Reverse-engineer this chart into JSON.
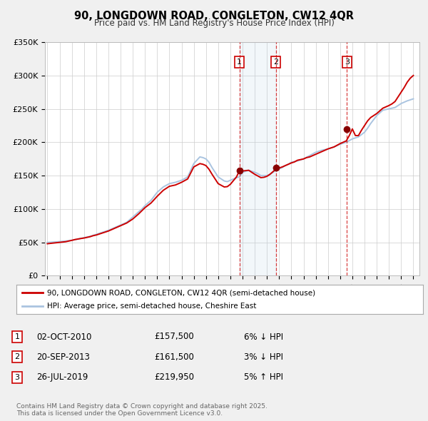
{
  "title": "90, LONGDOWN ROAD, CONGLETON, CW12 4QR",
  "subtitle": "Price paid vs. HM Land Registry's House Price Index (HPI)",
  "background_color": "#f0f0f0",
  "plot_bg_color": "#ffffff",
  "ylim": [
    0,
    350000
  ],
  "xlim_start": 1994.8,
  "xlim_end": 2025.5,
  "yticks": [
    0,
    50000,
    100000,
    150000,
    200000,
    250000,
    300000,
    350000
  ],
  "ytick_labels": [
    "£0",
    "£50K",
    "£100K",
    "£150K",
    "£200K",
    "£250K",
    "£300K",
    "£350K"
  ],
  "grid_color": "#cccccc",
  "hpi_line_color": "#aac4e0",
  "price_line_color": "#cc0000",
  "sale_dot_color": "#880000",
  "sale_points": [
    {
      "year": 2010.75,
      "value": 157500,
      "label": "1"
    },
    {
      "year": 2013.72,
      "value": 161500,
      "label": "2"
    },
    {
      "year": 2019.56,
      "value": 219950,
      "label": "3"
    }
  ],
  "legend_price_label": "90, LONGDOWN ROAD, CONGLETON, CW12 4QR (semi-detached house)",
  "legend_hpi_label": "HPI: Average price, semi-detached house, Cheshire East",
  "table_rows": [
    {
      "num": "1",
      "date": "02-OCT-2010",
      "price": "£157,500",
      "hpi": "6% ↓ HPI"
    },
    {
      "num": "2",
      "date": "20-SEP-2013",
      "price": "£161,500",
      "hpi": "3% ↓ HPI"
    },
    {
      "num": "3",
      "date": "26-JUL-2019",
      "price": "£219,950",
      "hpi": "5% ↑ HPI"
    }
  ],
  "footer_text": "Contains HM Land Registry data © Crown copyright and database right 2025.\nThis data is licensed under the Open Government Licence v3.0.",
  "hpi_data_x": [
    1995,
    1995.25,
    1995.5,
    1995.75,
    1996,
    1996.25,
    1996.5,
    1996.75,
    1997,
    1997.25,
    1997.5,
    1997.75,
    1998,
    1998.25,
    1998.5,
    1998.75,
    1999,
    1999.25,
    1999.5,
    1999.75,
    2000,
    2000.25,
    2000.5,
    2000.75,
    2001,
    2001.25,
    2001.5,
    2001.75,
    2002,
    2002.25,
    2002.5,
    2002.75,
    2003,
    2003.25,
    2003.5,
    2003.75,
    2004,
    2004.25,
    2004.5,
    2004.75,
    2005,
    2005.25,
    2005.5,
    2005.75,
    2006,
    2006.25,
    2006.5,
    2006.75,
    2007,
    2007.25,
    2007.5,
    2007.75,
    2008,
    2008.25,
    2008.5,
    2008.75,
    2009,
    2009.25,
    2009.5,
    2009.75,
    2010,
    2010.25,
    2010.5,
    2010.75,
    2011,
    2011.25,
    2011.5,
    2011.75,
    2012,
    2012.25,
    2012.5,
    2012.75,
    2013,
    2013.25,
    2013.5,
    2013.75,
    2014,
    2014.25,
    2014.5,
    2014.75,
    2015,
    2015.25,
    2015.5,
    2015.75,
    2016,
    2016.25,
    2016.5,
    2016.75,
    2017,
    2017.25,
    2017.5,
    2017.75,
    2018,
    2018.25,
    2018.5,
    2018.75,
    2019,
    2019.25,
    2019.5,
    2019.75,
    2020,
    2020.25,
    2020.5,
    2020.75,
    2021,
    2021.25,
    2021.5,
    2021.75,
    2022,
    2022.25,
    2022.5,
    2022.75,
    2023,
    2023.25,
    2023.5,
    2023.75,
    2024,
    2024.25,
    2024.5,
    2024.75,
    2025
  ],
  "hpi_data_y": [
    50000,
    50200,
    50500,
    50800,
    51200,
    51600,
    52000,
    52600,
    53200,
    54000,
    55000,
    56000,
    57000,
    58000,
    59000,
    60500,
    62000,
    63500,
    65000,
    66500,
    68000,
    70000,
    72000,
    74000,
    76000,
    78000,
    80000,
    84000,
    88000,
    92000,
    96000,
    100000,
    105000,
    109000,
    113000,
    119000,
    125000,
    129000,
    133000,
    135500,
    138000,
    139000,
    140000,
    141500,
    143000,
    145500,
    148000,
    158000,
    168000,
    173000,
    178000,
    177000,
    175000,
    170000,
    162000,
    155000,
    148000,
    145000,
    142000,
    141000,
    143000,
    145000,
    147000,
    148000,
    155000,
    156500,
    158000,
    156500,
    155000,
    153000,
    150000,
    150000,
    150000,
    152000,
    155000,
    158000,
    160000,
    162000,
    165000,
    167000,
    170000,
    171000,
    172000,
    173500,
    175000,
    177500,
    180000,
    182500,
    185000,
    186500,
    188000,
    189000,
    190000,
    191500,
    193000,
    195000,
    197000,
    198500,
    200000,
    202500,
    205000,
    206500,
    208000,
    211500,
    215000,
    221000,
    228000,
    234000,
    240000,
    244000,
    248000,
    249000,
    250000,
    251000,
    252000,
    255000,
    258000,
    260000,
    262000,
    263500,
    265000
  ],
  "price_data_x": [
    1995,
    1995.25,
    1995.5,
    1995.75,
    1996,
    1996.25,
    1996.5,
    1996.75,
    1997,
    1997.25,
    1997.5,
    1997.75,
    1998,
    1998.25,
    1998.5,
    1998.75,
    1999,
    1999.25,
    1999.5,
    1999.75,
    2000,
    2000.25,
    2000.5,
    2000.75,
    2001,
    2001.25,
    2001.5,
    2001.75,
    2002,
    2002.25,
    2002.5,
    2002.75,
    2003,
    2003.25,
    2003.5,
    2003.75,
    2004,
    2004.25,
    2004.5,
    2004.75,
    2005,
    2005.25,
    2005.5,
    2005.75,
    2006,
    2006.25,
    2006.5,
    2006.75,
    2007,
    2007.25,
    2007.5,
    2007.75,
    2008,
    2008.25,
    2008.5,
    2008.75,
    2009,
    2009.25,
    2009.5,
    2009.75,
    2010,
    2010.25,
    2010.5,
    2010.75,
    2011,
    2011.25,
    2011.5,
    2011.75,
    2012,
    2012.25,
    2012.5,
    2012.75,
    2013,
    2013.25,
    2013.5,
    2013.75,
    2014,
    2014.25,
    2014.5,
    2014.75,
    2015,
    2015.25,
    2015.5,
    2015.75,
    2016,
    2016.25,
    2016.5,
    2016.75,
    2017,
    2017.25,
    2017.5,
    2017.75,
    2018,
    2018.25,
    2018.5,
    2018.75,
    2019,
    2019.25,
    2019.5,
    2019.75,
    2020,
    2020.25,
    2020.5,
    2020.75,
    2021,
    2021.25,
    2021.5,
    2021.75,
    2022,
    2022.25,
    2022.5,
    2022.75,
    2023,
    2023.25,
    2023.5,
    2023.75,
    2024,
    2024.25,
    2024.5,
    2024.75,
    2025
  ],
  "price_data_y": [
    48000,
    48500,
    49000,
    49500,
    50000,
    50500,
    51000,
    52000,
    53000,
    54200,
    55000,
    55800,
    56500,
    57500,
    58500,
    60000,
    61000,
    62500,
    64000,
    65500,
    67000,
    69000,
    71000,
    73000,
    75000,
    77000,
    79000,
    82000,
    85000,
    89000,
    93000,
    97500,
    102000,
    105500,
    109000,
    114000,
    119000,
    123500,
    128000,
    131000,
    134000,
    135000,
    136000,
    138000,
    140000,
    142500,
    145000,
    154000,
    163000,
    165500,
    168000,
    167000,
    165000,
    159500,
    152000,
    145000,
    138000,
    135500,
    133000,
    133500,
    137000,
    142500,
    148000,
    157500,
    157000,
    157500,
    158000,
    155000,
    152000,
    149500,
    147000,
    147500,
    149000,
    152000,
    156000,
    160000,
    161500,
    163000,
    165000,
    167000,
    169000,
    170500,
    173000,
    174000,
    175000,
    177000,
    178000,
    180000,
    182000,
    184000,
    186000,
    188000,
    190000,
    191500,
    193000,
    195500,
    198000,
    200000,
    202000,
    210000,
    219950,
    210000,
    210000,
    218000,
    225000,
    232000,
    237000,
    240000,
    243000,
    247000,
    251000,
    253000,
    255000,
    257500,
    261000,
    268000,
    275000,
    282000,
    290000,
    296000,
    300000
  ]
}
